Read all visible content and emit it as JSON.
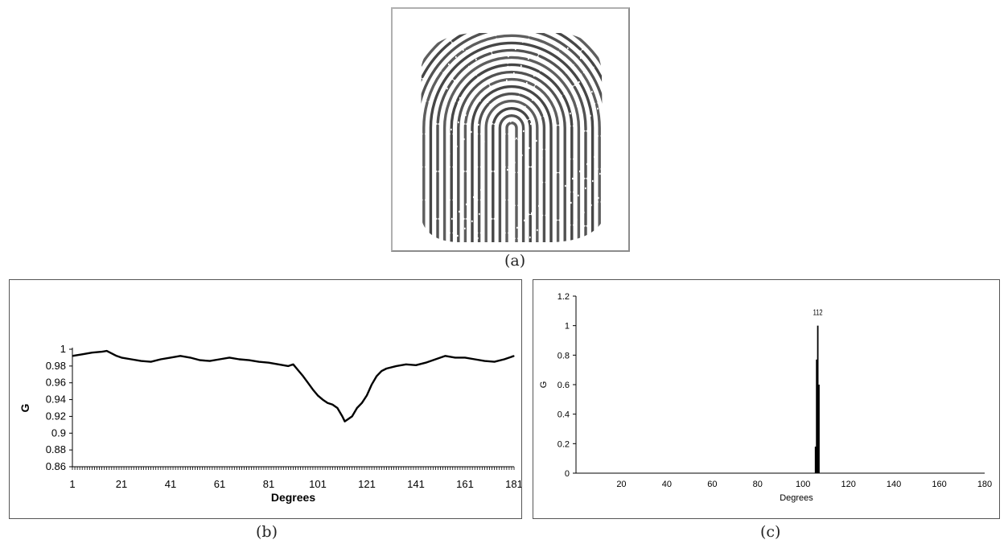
{
  "captions": {
    "a": "(a)",
    "b": "(b)",
    "c": "(c)"
  },
  "chart_data": [
    {
      "id": "b",
      "type": "line",
      "xlabel": "Degrees",
      "ylabel": "G",
      "xlim": [
        1,
        181
      ],
      "ylim": [
        0.86,
        1
      ],
      "x_ticks": [
        1,
        21,
        41,
        61,
        81,
        101,
        121,
        141,
        161,
        181
      ],
      "y_ticks": [
        0.86,
        0.88,
        0.9,
        0.92,
        0.94,
        0.96,
        0.98,
        1
      ],
      "y_tick_labels": [
        "0.86",
        "0.88",
        "0.9",
        "0.92",
        "0.94",
        "0.96",
        "0.98",
        "1"
      ],
      "grid": false,
      "legend": "none",
      "line_color": "#000000",
      "series": [
        {
          "x": [
            1,
            5,
            9,
            13,
            15,
            17,
            19,
            21,
            25,
            29,
            33,
            37,
            41,
            45,
            49,
            53,
            57,
            61,
            65,
            69,
            73,
            77,
            81,
            85,
            89,
            91,
            93,
            95,
            97,
            99,
            101,
            103,
            105,
            107,
            109,
            111,
            112,
            113,
            115,
            117,
            119,
            121,
            123,
            125,
            127,
            129,
            133,
            137,
            141,
            145,
            149,
            153,
            157,
            161,
            165,
            169,
            173,
            177,
            181
          ],
          "values": [
            0.992,
            0.994,
            0.996,
            0.997,
            0.998,
            0.995,
            0.992,
            0.99,
            0.988,
            0.986,
            0.985,
            0.988,
            0.99,
            0.992,
            0.99,
            0.987,
            0.986,
            0.988,
            0.99,
            0.988,
            0.987,
            0.985,
            0.984,
            0.982,
            0.98,
            0.982,
            0.975,
            0.968,
            0.96,
            0.952,
            0.945,
            0.94,
            0.936,
            0.934,
            0.93,
            0.92,
            0.914,
            0.916,
            0.92,
            0.93,
            0.936,
            0.945,
            0.958,
            0.968,
            0.974,
            0.977,
            0.98,
            0.982,
            0.981,
            0.984,
            0.988,
            0.992,
            0.99,
            0.99,
            0.988,
            0.986,
            0.985,
            0.988,
            0.992
          ]
        }
      ]
    },
    {
      "id": "c",
      "type": "bar",
      "xlabel": "Degrees",
      "ylabel": "G",
      "xlim": [
        0,
        180
      ],
      "ylim": [
        0,
        1.2
      ],
      "x_ticks": [
        20,
        40,
        60,
        80,
        100,
        120,
        140,
        160,
        180
      ],
      "y_ticks": [
        0,
        0.2,
        0.4,
        0.6,
        0.8,
        1,
        1.2
      ],
      "y_tick_labels": [
        "0",
        "0.2",
        "0.4",
        "0.6",
        "0.8",
        "1",
        "1.2"
      ],
      "grid": false,
      "legend": "none",
      "bar_color": "#000000",
      "x": [
        105.5,
        106,
        106.5,
        107
      ],
      "values": [
        0.18,
        0.77,
        1.0,
        0.6
      ],
      "annotations": [
        {
          "text": "112",
          "x": 106.5,
          "y": 1.0
        }
      ]
    }
  ]
}
